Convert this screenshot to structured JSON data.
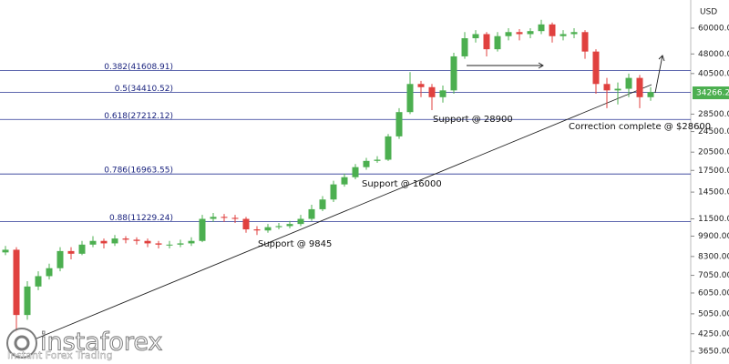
{
  "chart_data": {
    "type": "candlestick",
    "ylabel": "USD",
    "log_scale": true,
    "grid": false,
    "up_color": "#4caf50",
    "down_color": "#e0413f",
    "ylim": [
      3270,
      76600
    ],
    "yticks": [
      {
        "value": 60000,
        "label": "60000.00"
      },
      {
        "value": 48000,
        "label": "48000.00"
      },
      {
        "value": 40500,
        "label": "40500.00"
      },
      {
        "value": 28500,
        "label": "28500.00"
      },
      {
        "value": 24500,
        "label": "24500.00"
      },
      {
        "value": 20500,
        "label": "20500.00"
      },
      {
        "value": 17500,
        "label": "17500.00"
      },
      {
        "value": 14500,
        "label": "14500.00"
      },
      {
        "value": 11500,
        "label": "11500.00"
      },
      {
        "value": 9900,
        "label": "9900.00"
      },
      {
        "value": 8300,
        "label": "8300.00"
      },
      {
        "value": 7050,
        "label": "7050.00"
      },
      {
        "value": 6050,
        "label": "6050.00"
      },
      {
        "value": 5050,
        "label": "5050.00"
      },
      {
        "value": 4250,
        "label": "4250.00"
      },
      {
        "value": 3650,
        "label": "3650.00"
      }
    ],
    "open": [
      8600,
      8800,
      5000,
      6400,
      7000,
      7500,
      8700,
      8500,
      9200,
      9500,
      9300,
      9700,
      9600,
      9500,
      9300,
      9200,
      9200,
      9300,
      9500,
      11500,
      11700,
      11600,
      11500,
      10500,
      10400,
      10700,
      10800,
      11000,
      11500,
      12500,
      13600,
      15500,
      16500,
      18000,
      19000,
      19200,
      23500,
      29000,
      37000,
      36000,
      33000,
      35000,
      47000,
      55000,
      57000,
      50000,
      56000,
      58000,
      57000,
      58500,
      62000,
      56000,
      57000,
      58000,
      49000,
      37000,
      35000,
      35500,
      39000,
      33000
    ],
    "high": [
      9100,
      9000,
      6700,
      7300,
      7800,
      9000,
      9000,
      9500,
      9900,
      9700,
      10000,
      9900,
      9800,
      9700,
      9500,
      9500,
      9600,
      9800,
      11900,
      12100,
      12000,
      11900,
      11700,
      10800,
      11000,
      11100,
      11300,
      11900,
      13000,
      14000,
      16000,
      17000,
      18500,
      19500,
      19800,
      24000,
      30000,
      41000,
      38000,
      37000,
      36500,
      48500,
      58000,
      59000,
      58000,
      58000,
      60000,
      59500,
      60000,
      64500,
      63000,
      59000,
      60000,
      59000,
      50000,
      39000,
      37500,
      40500,
      40000,
      36000
    ],
    "low": [
      8400,
      4300,
      4800,
      6200,
      6800,
      7300,
      8100,
      8400,
      9000,
      8900,
      9100,
      9300,
      9200,
      9000,
      8900,
      8900,
      9000,
      9100,
      9400,
      11200,
      11200,
      11100,
      10200,
      10000,
      10200,
      10500,
      10600,
      10800,
      11300,
      12300,
      13300,
      15200,
      16200,
      17600,
      18700,
      19000,
      23000,
      28500,
      33000,
      29500,
      31500,
      34000,
      46000,
      53000,
      47000,
      49000,
      54000,
      54000,
      55000,
      57000,
      53000,
      54000,
      55000,
      46000,
      34000,
      30000,
      31000,
      33000,
      30000,
      32000
    ],
    "close": [
      8800,
      5000,
      6400,
      7000,
      7500,
      8700,
      8500,
      9200,
      9500,
      9300,
      9700,
      9600,
      9500,
      9300,
      9200,
      9200,
      9300,
      9500,
      11500,
      11700,
      11600,
      11500,
      10500,
      10400,
      10700,
      10800,
      11000,
      11500,
      12500,
      13600,
      15500,
      16500,
      18000,
      19000,
      19200,
      23500,
      29000,
      37000,
      36000,
      33000,
      35000,
      47000,
      55000,
      57000,
      50000,
      56000,
      58000,
      57000,
      58500,
      62000,
      56000,
      57000,
      58000,
      49000,
      37000,
      35000,
      35500,
      39000,
      33000,
      34500
    ],
    "fib_levels": [
      {
        "value": 41608.91,
        "label": "0.382(41608.91)"
      },
      {
        "value": 34410.52,
        "label": "0.5(34410.52)"
      },
      {
        "value": 27212.12,
        "label": "0.618(27212.12)"
      },
      {
        "value": 16963.55,
        "label": "0.786(16963.55)"
      },
      {
        "value": 11229.24,
        "label": "0.88(11229.24)"
      }
    ],
    "fib_color": "#283593",
    "last_price": 34266.25,
    "last_price_color": "#4caf50",
    "annotations": [
      "Support @ 9845",
      "Support @ 16000",
      "Support @ 28900",
      "Correction complete @ $28600"
    ]
  },
  "watermark": {
    "brand": "instaforex",
    "tagline": "Instant Forex Trading"
  }
}
